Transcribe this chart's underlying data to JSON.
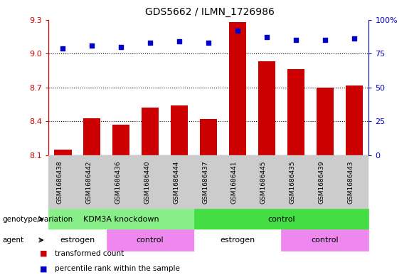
{
  "title": "GDS5662 / ILMN_1726986",
  "samples": [
    "GSM1686438",
    "GSM1686442",
    "GSM1686436",
    "GSM1686440",
    "GSM1686444",
    "GSM1686437",
    "GSM1686441",
    "GSM1686445",
    "GSM1686435",
    "GSM1686439",
    "GSM1686443"
  ],
  "bar_values": [
    8.15,
    8.43,
    8.37,
    8.52,
    8.54,
    8.42,
    9.28,
    8.93,
    8.86,
    8.7,
    8.72
  ],
  "dot_values": [
    79,
    81,
    80,
    83,
    84,
    83,
    92,
    87,
    85,
    85,
    86
  ],
  "ylim_left": [
    8.1,
    9.3
  ],
  "ylim_right": [
    0,
    100
  ],
  "yticks_left": [
    8.1,
    8.4,
    8.7,
    9.0,
    9.3
  ],
  "yticks_right": [
    0,
    25,
    50,
    75,
    100
  ],
  "ytick_labels_right": [
    "0",
    "25",
    "50",
    "75",
    "100%"
  ],
  "bar_color": "#cc0000",
  "dot_color": "#0000cc",
  "bar_width": 0.6,
  "genotype_groups": [
    {
      "label": "KDM3A knockdown",
      "start": 0,
      "end": 5,
      "color": "#88ee88"
    },
    {
      "label": "control",
      "start": 5,
      "end": 11,
      "color": "#44dd44"
    }
  ],
  "agent_groups": [
    {
      "label": "estrogen",
      "start": 0,
      "end": 2,
      "color": "#ffffff"
    },
    {
      "label": "control",
      "start": 2,
      "end": 5,
      "color": "#ee88ee"
    },
    {
      "label": "estrogen",
      "start": 5,
      "end": 8,
      "color": "#ffffff"
    },
    {
      "label": "control",
      "start": 8,
      "end": 11,
      "color": "#ee88ee"
    }
  ],
  "grid_dotted_values": [
    9.0,
    8.7,
    8.4
  ],
  "legend_items": [
    {
      "color": "#cc0000",
      "label": "transformed count"
    },
    {
      "color": "#0000cc",
      "label": "percentile rank within the sample"
    }
  ],
  "sample_bg_color": "#cccccc",
  "plot_bg_color": "#ffffff"
}
